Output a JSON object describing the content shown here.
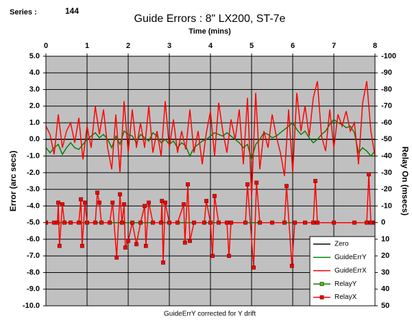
{
  "chart_data": {
    "type": "line",
    "series_label": "Series :",
    "series_number": "144",
    "title": "Guide Errors : 8\" LX200, ST-7e",
    "xlabel": "Time (mins)",
    "ylabel": "Error (arc secs)",
    "y2label": "Relay On (msecs)",
    "footnote": "GuideErrY corrected for Y drift",
    "xlim": [
      0,
      8
    ],
    "xticks": [
      0,
      1,
      2,
      3,
      4,
      5,
      6,
      7,
      8
    ],
    "ylim": [
      -10,
      5
    ],
    "yticks": [
      {
        "value": -10,
        "label": "-10.0"
      },
      {
        "value": -9,
        "label": "-9.0"
      },
      {
        "value": -8,
        "label": "-8.0"
      },
      {
        "value": -7,
        "label": "-7.0"
      },
      {
        "value": -6,
        "label": "-6.0"
      },
      {
        "value": -5,
        "label": "-5.0"
      },
      {
        "value": -4,
        "label": "-4.0"
      },
      {
        "value": -3,
        "label": "-3.0"
      },
      {
        "value": -2,
        "label": "-2.0"
      },
      {
        "value": -1,
        "label": "-1.0"
      },
      {
        "value": 0,
        "label": "0.0"
      },
      {
        "value": 1,
        "label": "1.0"
      },
      {
        "value": 2,
        "label": "2.0"
      },
      {
        "value": 3,
        "label": "3.0"
      },
      {
        "value": 4,
        "label": "4.0"
      },
      {
        "value": 5,
        "label": "5.0"
      }
    ],
    "y2lim": [
      50,
      -100
    ],
    "y2ticks": [
      50,
      40,
      30,
      20,
      10,
      0,
      -10,
      -20,
      -30,
      -40,
      -50,
      -60,
      -70,
      -80,
      -90,
      -100
    ],
    "grid": true,
    "legend": "lower right",
    "x": [
      0,
      0.1,
      0.2,
      0.3,
      0.4,
      0.5,
      0.6,
      0.7,
      0.8,
      0.9,
      1,
      1.1,
      1.2,
      1.3,
      1.4,
      1.5,
      1.6,
      1.7,
      1.8,
      1.9,
      2,
      2.1,
      2.2,
      2.3,
      2.4,
      2.5,
      2.6,
      2.7,
      2.8,
      2.9,
      3,
      3.1,
      3.2,
      3.3,
      3.4,
      3.5,
      3.6,
      3.7,
      3.8,
      3.9,
      4,
      4.1,
      4.2,
      4.3,
      4.4,
      4.5,
      4.6,
      4.7,
      4.8,
      4.9,
      5,
      5.1,
      5.2,
      5.3,
      5.4,
      5.5,
      5.6,
      5.7,
      5.8,
      5.9,
      6,
      6.1,
      6.2,
      6.3,
      6.4,
      6.5,
      6.6,
      6.7,
      6.8,
      6.9,
      7,
      7.1,
      7.2,
      7.3,
      7.4,
      7.5,
      7.6,
      7.7,
      7.8,
      7.9,
      8
    ],
    "series": [
      {
        "name": "Zero",
        "color": "#000000",
        "x": [
          0,
          8
        ],
        "values": [
          0,
          0
        ]
      },
      {
        "name": "GuideErrY",
        "color": "#008000",
        "values": [
          -0.5,
          -0.8,
          -0.5,
          -0.3,
          -0.9,
          -0.5,
          -0.2,
          -0.5,
          -0.6,
          -0.3,
          0.0,
          0.2,
          0.4,
          0.1,
          0.3,
          0.0,
          -0.5,
          0.2,
          -0.3,
          0.5,
          0.3,
          0.2,
          -0.2,
          0.3,
          0.1,
          -0.1,
          0.4,
          0.2,
          -0.2,
          0.0,
          -0.3,
          -0.1,
          -0.5,
          -0.2,
          -0.4,
          -1.0,
          -0.5,
          -0.3,
          -0.1,
          0.0,
          0.2,
          0.4,
          0.3,
          0.2,
          0.4,
          0.2,
          0.0,
          -0.2,
          -0.5,
          -0.3,
          -1.2,
          -0.3,
          0.0,
          0.4,
          0.3,
          0.1,
          0.2,
          0.4,
          0.6,
          0.8,
          1.0,
          0.6,
          0.3,
          0.5,
          0.1,
          -0.2,
          0.0,
          0.3,
          0.5,
          0.9,
          1.2,
          1.0,
          0.9,
          0.7,
          0.8,
          0.4,
          -0.8,
          -0.5,
          -0.7,
          -1.0,
          -0.7
        ]
      },
      {
        "name": "GuideErrX",
        "color": "#ff0000",
        "values": [
          0.8,
          0.3,
          -0.9,
          1.5,
          -0.5,
          0.5,
          1.0,
          -0.2,
          1.3,
          -1.2,
          0.8,
          -0.5,
          2.0,
          0.3,
          1.8,
          -0.5,
          -1.8,
          1.5,
          -2.0,
          2.3,
          -0.8,
          1.8,
          -0.5,
          1.0,
          -0.5,
          2.0,
          -0.8,
          0.5,
          -1.0,
          2.3,
          -0.5,
          1.2,
          -0.8,
          0.5,
          -0.6,
          1.8,
          -0.8,
          0.5,
          -1.5,
          0.4,
          1.7,
          -1.0,
          2.2,
          0.5,
          -0.8,
          1.2,
          0.0,
          1.8,
          -1.5,
          2.5,
          -3.5,
          2.8,
          -1.8,
          0.5,
          -0.5,
          1.5,
          0.2,
          -0.8,
          -2.2,
          1.8,
          -2.0,
          2.8,
          0.5,
          2.0,
          0.2,
          2.5,
          3.5,
          0.2,
          -0.7,
          1.8,
          -0.5,
          1.5,
          0.8,
          1.7,
          0.5,
          1.0,
          -1.5,
          2.2,
          3.5,
          0.5,
          -1.0
        ]
      },
      {
        "name": "RelayY",
        "color": "#008000",
        "marker_color": "#00ff00",
        "axis": "y2",
        "x": [
          0,
          8
        ],
        "values": [
          0,
          0
        ]
      },
      {
        "name": "RelayX",
        "color": "#ff0000",
        "marker_color": "#ff0000",
        "axis": "y2",
        "x": [
          0,
          0.2,
          0.28,
          0.3,
          0.33,
          0.4,
          0.45,
          0.6,
          0.8,
          0.85,
          0.88,
          0.95,
          1.0,
          1.2,
          1.25,
          1.3,
          1.35,
          1.55,
          1.62,
          1.72,
          1.8,
          1.85,
          1.9,
          1.93,
          2.0,
          2.1,
          2.2,
          2.3,
          2.4,
          2.43,
          2.5,
          2.6,
          2.8,
          2.82,
          2.85,
          2.9,
          3.0,
          3.2,
          3.35,
          3.38,
          3.45,
          3.5,
          3.6,
          3.85,
          3.9,
          4.0,
          4.05,
          4.1,
          4.2,
          4.4,
          4.45,
          4.5,
          4.85,
          4.9,
          5.05,
          5.12,
          5.2,
          5.5,
          5.8,
          5.85,
          5.98,
          6.05,
          6.3,
          6.5,
          6.55,
          6.6,
          7.0,
          7.5,
          7.8,
          7.85,
          7.9,
          8.0
        ],
        "values": [
          0,
          0,
          0,
          -12,
          14,
          -11,
          0,
          0,
          0,
          -14,
          14,
          -12,
          0,
          0,
          -18,
          -12,
          0,
          0,
          -12,
          21,
          -17,
          0,
          -11,
          15,
          11,
          0,
          13,
          0,
          -10,
          14,
          -12,
          0,
          0,
          -13,
          24,
          -12,
          0,
          0,
          -11,
          12,
          -23,
          11,
          0,
          0,
          -13,
          0,
          20,
          -16,
          0,
          0,
          20,
          0,
          0,
          -23,
          27,
          -24,
          0,
          0,
          0,
          -22,
          26,
          0,
          0,
          0,
          -25,
          0,
          0,
          0,
          0,
          -29,
          0,
          0
        ]
      }
    ]
  }
}
